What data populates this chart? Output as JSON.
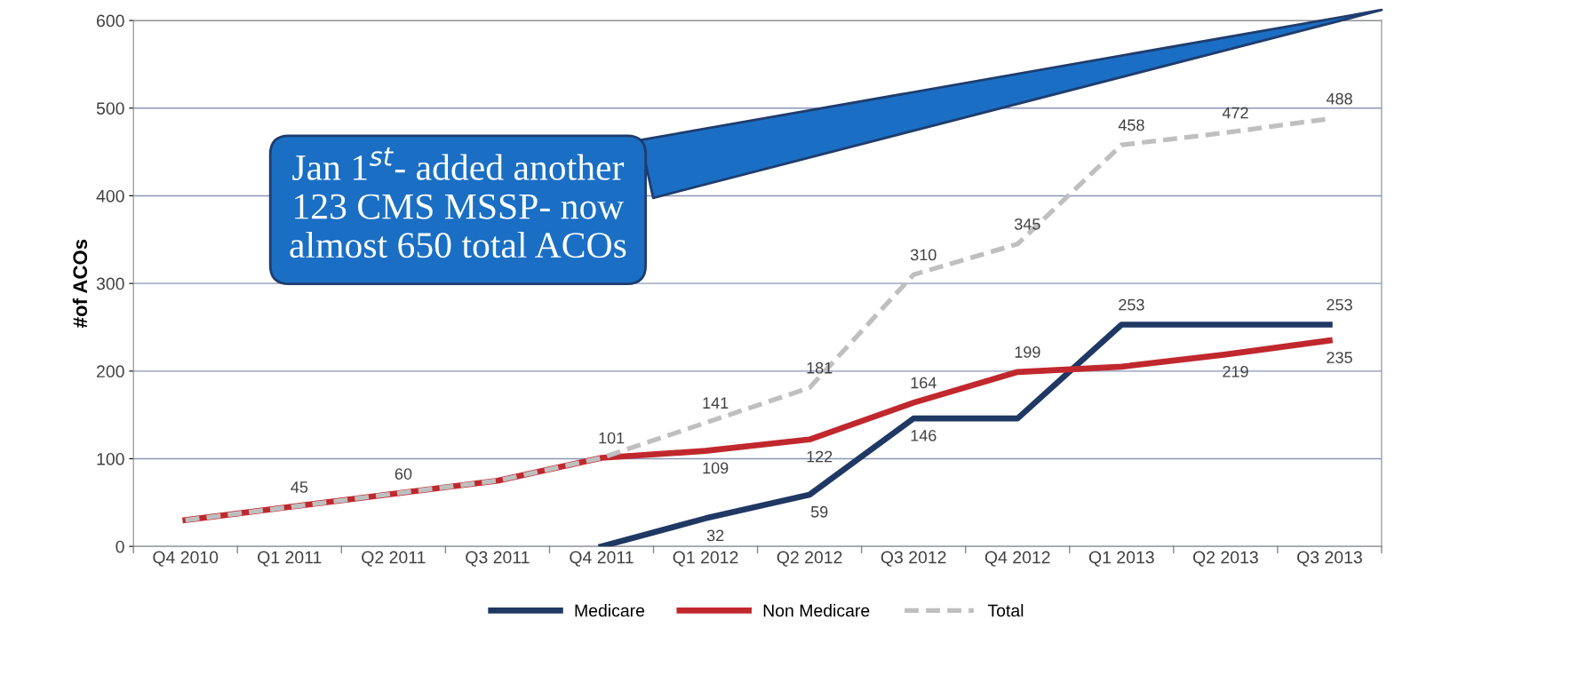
{
  "chart_data": {
    "type": "line",
    "ylabel": "#of ACOs",
    "categories": [
      "Q4 2010",
      "Q1 2011",
      "Q2 2011",
      "Q3 2011",
      "Q4 2011",
      "Q1 2012",
      "Q2 2012",
      "Q3 2012",
      "Q4 2012",
      "Q1 2013",
      "Q2 2013",
      "Q3 2013"
    ],
    "series": [
      {
        "name": "Medicare",
        "color": "#1f3864",
        "line_style": "solid",
        "values": [
          null,
          null,
          null,
          null,
          0,
          32,
          59,
          146,
          146,
          253,
          253,
          253
        ],
        "value_labels": [
          null,
          null,
          null,
          null,
          null,
          "32",
          "59",
          "146",
          null,
          "253",
          null,
          "253"
        ]
      },
      {
        "name": "Non Medicare",
        "color": "#c0282d",
        "line_style": "solid",
        "values": [
          30,
          45,
          60,
          75,
          101,
          109,
          122,
          164,
          199,
          205,
          219,
          235
        ],
        "value_labels": [
          null,
          null,
          null,
          null,
          null,
          "109",
          "122",
          "164",
          "199",
          null,
          "219",
          "235"
        ]
      },
      {
        "name": "Total",
        "color": "#bfbfbf",
        "line_style": "dashed",
        "values": [
          30,
          45,
          60,
          75,
          101,
          141,
          181,
          310,
          345,
          458,
          472,
          488
        ],
        "value_labels": [
          null,
          "45",
          "60",
          null,
          "101",
          "141",
          "181",
          "310",
          "345",
          "458",
          "472",
          "488"
        ]
      }
    ],
    "ylim": [
      0,
      600
    ],
    "yticks": [
      0,
      100,
      200,
      300,
      400,
      500,
      600
    ],
    "grid": "y",
    "legend": "bottom",
    "marker": "none",
    "annotations": [
      "Jan 1$^{st}$- added another\n123 CMS MSSP- now\nalmost 650 total ACOs"
    ]
  }
}
